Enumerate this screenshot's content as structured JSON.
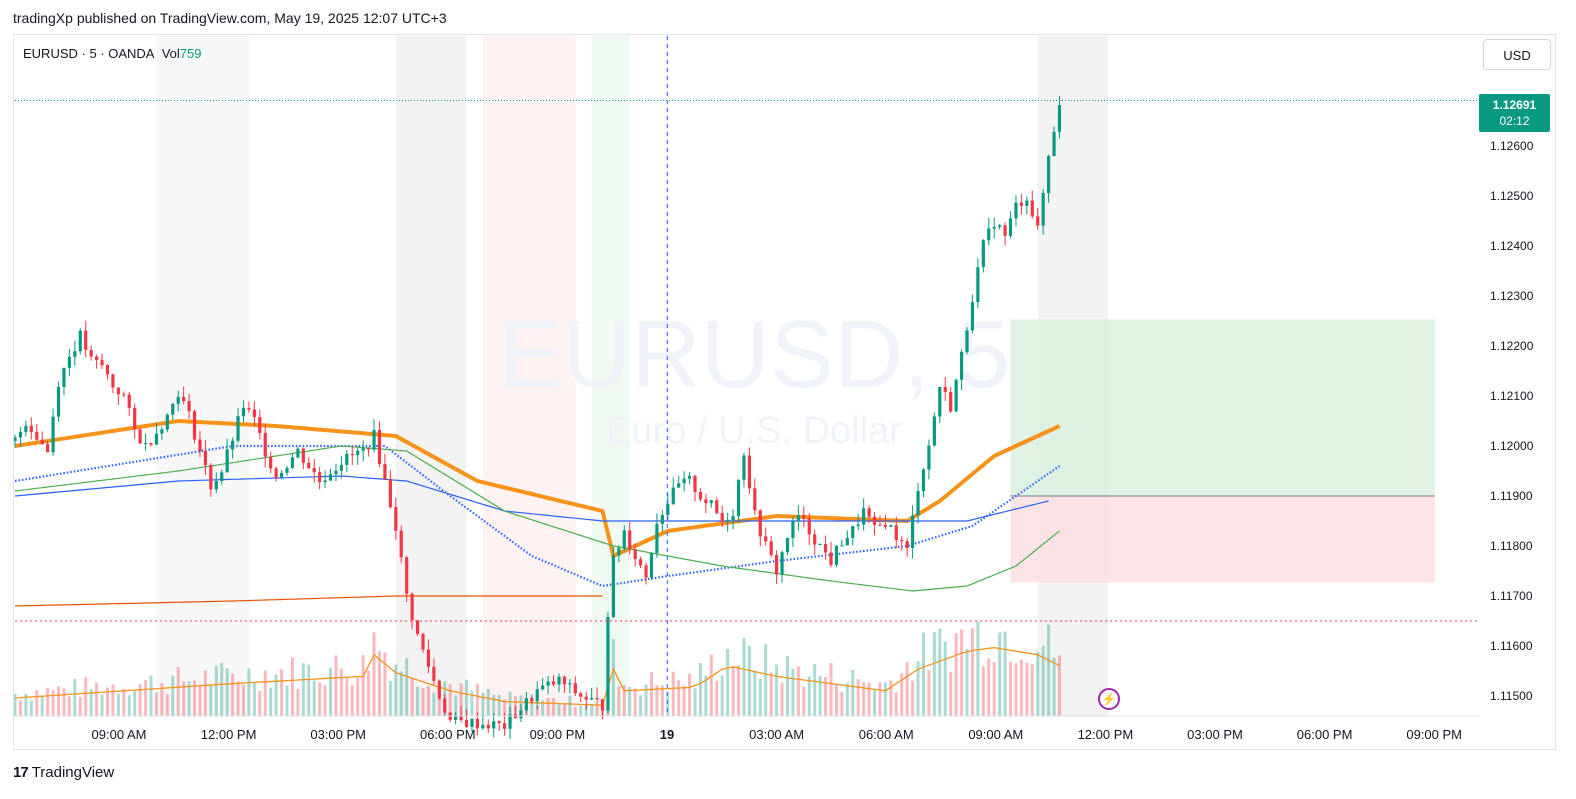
{
  "header": {
    "published_text": "tradingXp published on TradingView.com, May 19, 2025 12:07 UTC+3"
  },
  "legend": {
    "symbol_text": "EURUSD · 5 · OANDA",
    "vol_label": "Vol",
    "vol_value": "759"
  },
  "currency_button": {
    "label": "USD"
  },
  "price_tag": {
    "price": "1.12691",
    "countdown": "02:12"
  },
  "watermark": {
    "symbol": "EURUSD, 5",
    "description": "Euro / U.S. Dollar"
  },
  "footer": {
    "brand": "TradingView",
    "logo_icon": "tradingview-logo-icon"
  },
  "colors": {
    "up": "#089981",
    "down": "#f23645",
    "ema_orange": "#f7931a",
    "ma_blue": "#2962ff",
    "ma_green": "#4caf50",
    "ma_red": "#e65100",
    "target_zone": "#d7efdc",
    "stop_zone": "#fbdde0"
  },
  "chart_data": {
    "type": "candlestick",
    "symbol": "EURUSD",
    "interval": "5",
    "x_tick_labels": [
      "09:00 AM",
      "12:00 PM",
      "03:00 PM",
      "06:00 PM",
      "09:00 PM",
      "19",
      "03:00 AM",
      "06:00 AM",
      "09:00 AM",
      "12:00 PM",
      "03:00 PM",
      "06:00 PM",
      "09:00 PM"
    ],
    "y_tick_labels": [
      "1.12600",
      "1.12500",
      "1.12400",
      "1.12300",
      "1.12200",
      "1.12100",
      "1.12000",
      "1.11900",
      "1.11800",
      "1.11700",
      "1.11600",
      "1.11500"
    ],
    "ylim": [
      1.1146,
      1.1282
    ],
    "last_price": 1.12691,
    "price_path": [
      [
        0,
        1.1201
      ],
      [
        2,
        1.1205
      ],
      [
        6,
        1.1199
      ],
      [
        8,
        1.1213
      ],
      [
        10,
        1.1218
      ],
      [
        12,
        1.1222
      ],
      [
        14,
        1.1217
      ],
      [
        16,
        1.1216
      ],
      [
        18,
        1.1212
      ],
      [
        20,
        1.121
      ],
      [
        22,
        1.1203
      ],
      [
        24,
        1.12
      ],
      [
        28,
        1.1206
      ],
      [
        30,
        1.1211
      ],
      [
        32,
        1.1206
      ],
      [
        34,
        1.1199
      ],
      [
        36,
        1.1192
      ],
      [
        38,
        1.1195
      ],
      [
        42,
        1.1208
      ],
      [
        44,
        1.1205
      ],
      [
        46,
        1.1199
      ],
      [
        48,
        1.1194
      ],
      [
        52,
        1.1199
      ],
      [
        56,
        1.1193
      ],
      [
        60,
        1.1197
      ],
      [
        64,
        1.1199
      ],
      [
        66,
        1.1202
      ],
      [
        68,
        1.1193
      ],
      [
        70,
        1.1184
      ],
      [
        72,
        1.117
      ],
      [
        74,
        1.1162
      ],
      [
        76,
        1.1156
      ],
      [
        78,
        1.115
      ],
      [
        80,
        1.1145
      ],
      [
        90,
        1.1144
      ],
      [
        96,
        1.1151
      ],
      [
        100,
        1.1153
      ],
      [
        104,
        1.115
      ],
      [
        106,
        1.1149
      ],
      [
        108,
        1.1148
      ],
      [
        109,
        1.1167
      ],
      [
        110,
        1.1177
      ],
      [
        112,
        1.1183
      ],
      [
        114,
        1.1178
      ],
      [
        116,
        1.1174
      ],
      [
        118,
        1.1185
      ],
      [
        120,
        1.1189
      ],
      [
        122,
        1.1192
      ],
      [
        124,
        1.1193
      ],
      [
        126,
        1.119
      ],
      [
        128,
        1.1188
      ],
      [
        130,
        1.1185
      ],
      [
        132,
        1.1187
      ],
      [
        134,
        1.1199
      ],
      [
        136,
        1.1186
      ],
      [
        138,
        1.118
      ],
      [
        140,
        1.1175
      ],
      [
        142,
        1.1182
      ],
      [
        144,
        1.1186
      ],
      [
        146,
        1.1183
      ],
      [
        148,
        1.118
      ],
      [
        150,
        1.1177
      ],
      [
        152,
        1.1181
      ],
      [
        154,
        1.1183
      ],
      [
        156,
        1.1187
      ],
      [
        158,
        1.1183
      ],
      [
        160,
        1.1185
      ],
      [
        162,
        1.1182
      ],
      [
        164,
        1.1179
      ],
      [
        166,
        1.1192
      ],
      [
        168,
        1.12
      ],
      [
        170,
        1.1212
      ],
      [
        172,
        1.1208
      ],
      [
        174,
        1.1218
      ],
      [
        176,
        1.123
      ],
      [
        178,
        1.124
      ],
      [
        180,
        1.1245
      ],
      [
        182,
        1.1242
      ],
      [
        184,
        1.1248
      ],
      [
        186,
        1.125
      ],
      [
        188,
        1.1243
      ],
      [
        190,
        1.1258
      ],
      [
        192,
        1.1269
      ]
    ],
    "volume_profile": [
      [
        0,
        0.25
      ],
      [
        20,
        0.35
      ],
      [
        40,
        0.45
      ],
      [
        64,
        0.55
      ],
      [
        66,
        0.85
      ],
      [
        70,
        0.6
      ],
      [
        80,
        0.35
      ],
      [
        90,
        0.2
      ],
      [
        108,
        0.15
      ],
      [
        109,
        0.8
      ],
      [
        112,
        0.35
      ],
      [
        125,
        0.4
      ],
      [
        128,
        0.55
      ],
      [
        131,
        0.7
      ],
      [
        140,
        0.55
      ],
      [
        150,
        0.45
      ],
      [
        160,
        0.35
      ],
      [
        166,
        0.65
      ],
      [
        175,
        0.9
      ],
      [
        180,
        0.95
      ],
      [
        188,
        0.85
      ],
      [
        192,
        0.7
      ]
    ],
    "series": [
      {
        "name": "EMA orange (thick)",
        "points": [
          [
            0,
            1.12
          ],
          [
            30,
            1.1205
          ],
          [
            48,
            1.1204
          ],
          [
            70,
            1.1202
          ],
          [
            85,
            1.1193
          ],
          [
            108,
            1.1187
          ],
          [
            110,
            1.1178
          ],
          [
            120,
            1.1183
          ],
          [
            140,
            1.1186
          ],
          [
            164,
            1.1185
          ],
          [
            170,
            1.1189
          ],
          [
            180,
            1.1198
          ],
          [
            192,
            1.1204
          ]
        ]
      },
      {
        "name": "MA blue (dotted)",
        "points": [
          [
            0,
            1.1193
          ],
          [
            40,
            1.12
          ],
          [
            68,
            1.12
          ],
          [
            80,
            1.119
          ],
          [
            95,
            1.1178
          ],
          [
            108,
            1.1172
          ],
          [
            120,
            1.1174
          ],
          [
            140,
            1.1177
          ],
          [
            164,
            1.118
          ],
          [
            176,
            1.1184
          ],
          [
            192,
            1.1196
          ]
        ]
      },
      {
        "name": "MA blue (solid)",
        "points": [
          [
            0,
            1.119
          ],
          [
            30,
            1.1193
          ],
          [
            60,
            1.1194
          ],
          [
            72,
            1.1193
          ],
          [
            90,
            1.1187
          ],
          [
            108,
            1.1185
          ],
          [
            120,
            1.1185
          ],
          [
            150,
            1.1185
          ],
          [
            175,
            1.1185
          ],
          [
            190,
            1.1189
          ]
        ]
      },
      {
        "name": "MA green",
        "points": [
          [
            0,
            1.1191
          ],
          [
            30,
            1.1195
          ],
          [
            60,
            1.12
          ],
          [
            72,
            1.1199
          ],
          [
            90,
            1.1187
          ],
          [
            110,
            1.118
          ],
          [
            130,
            1.1176
          ],
          [
            150,
            1.1173
          ],
          [
            165,
            1.1171
          ],
          [
            175,
            1.1172
          ],
          [
            184,
            1.1176
          ],
          [
            192,
            1.1183
          ]
        ]
      },
      {
        "name": "MA red",
        "points": [
          [
            0,
            1.1168
          ],
          [
            40,
            1.1169
          ],
          [
            70,
            1.117
          ],
          [
            95,
            1.117
          ],
          [
            108,
            1.117
          ]
        ]
      }
    ],
    "horizontal_levels": [
      {
        "name": "last price line",
        "price": 1.12691
      },
      {
        "name": "support line",
        "price": 1.1165
      }
    ],
    "position": {
      "type": "long",
      "entry": 1.119,
      "target": 1.12253,
      "stop": 1.11727
    }
  }
}
